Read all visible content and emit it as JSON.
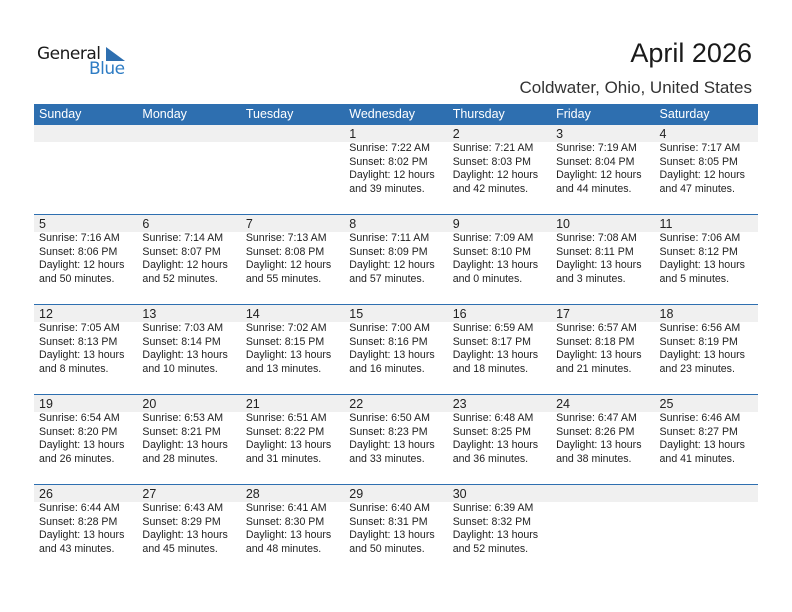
{
  "logo": {
    "general": "General",
    "blue": "Blue"
  },
  "title": "April 2026",
  "location": "Coldwater, Ohio, United States",
  "colors": {
    "header": "#2e6fb0",
    "band": "#f0f0f0"
  },
  "days": [
    "Sunday",
    "Monday",
    "Tuesday",
    "Wednesday",
    "Thursday",
    "Friday",
    "Saturday"
  ],
  "weeks": [
    [
      null,
      null,
      null,
      {
        "d": "1",
        "sr": "Sunrise: 7:22 AM",
        "ss": "Sunset: 8:02 PM",
        "dl": "Daylight: 12 hours",
        "dm": "and 39 minutes."
      },
      {
        "d": "2",
        "sr": "Sunrise: 7:21 AM",
        "ss": "Sunset: 8:03 PM",
        "dl": "Daylight: 12 hours",
        "dm": "and 42 minutes."
      },
      {
        "d": "3",
        "sr": "Sunrise: 7:19 AM",
        "ss": "Sunset: 8:04 PM",
        "dl": "Daylight: 12 hours",
        "dm": "and 44 minutes."
      },
      {
        "d": "4",
        "sr": "Sunrise: 7:17 AM",
        "ss": "Sunset: 8:05 PM",
        "dl": "Daylight: 12 hours",
        "dm": "and 47 minutes."
      }
    ],
    [
      {
        "d": "5",
        "sr": "Sunrise: 7:16 AM",
        "ss": "Sunset: 8:06 PM",
        "dl": "Daylight: 12 hours",
        "dm": "and 50 minutes."
      },
      {
        "d": "6",
        "sr": "Sunrise: 7:14 AM",
        "ss": "Sunset: 8:07 PM",
        "dl": "Daylight: 12 hours",
        "dm": "and 52 minutes."
      },
      {
        "d": "7",
        "sr": "Sunrise: 7:13 AM",
        "ss": "Sunset: 8:08 PM",
        "dl": "Daylight: 12 hours",
        "dm": "and 55 minutes."
      },
      {
        "d": "8",
        "sr": "Sunrise: 7:11 AM",
        "ss": "Sunset: 8:09 PM",
        "dl": "Daylight: 12 hours",
        "dm": "and 57 minutes."
      },
      {
        "d": "9",
        "sr": "Sunrise: 7:09 AM",
        "ss": "Sunset: 8:10 PM",
        "dl": "Daylight: 13 hours",
        "dm": "and 0 minutes."
      },
      {
        "d": "10",
        "sr": "Sunrise: 7:08 AM",
        "ss": "Sunset: 8:11 PM",
        "dl": "Daylight: 13 hours",
        "dm": "and 3 minutes."
      },
      {
        "d": "11",
        "sr": "Sunrise: 7:06 AM",
        "ss": "Sunset: 8:12 PM",
        "dl": "Daylight: 13 hours",
        "dm": "and 5 minutes."
      }
    ],
    [
      {
        "d": "12",
        "sr": "Sunrise: 7:05 AM",
        "ss": "Sunset: 8:13 PM",
        "dl": "Daylight: 13 hours",
        "dm": "and 8 minutes."
      },
      {
        "d": "13",
        "sr": "Sunrise: 7:03 AM",
        "ss": "Sunset: 8:14 PM",
        "dl": "Daylight: 13 hours",
        "dm": "and 10 minutes."
      },
      {
        "d": "14",
        "sr": "Sunrise: 7:02 AM",
        "ss": "Sunset: 8:15 PM",
        "dl": "Daylight: 13 hours",
        "dm": "and 13 minutes."
      },
      {
        "d": "15",
        "sr": "Sunrise: 7:00 AM",
        "ss": "Sunset: 8:16 PM",
        "dl": "Daylight: 13 hours",
        "dm": "and 16 minutes."
      },
      {
        "d": "16",
        "sr": "Sunrise: 6:59 AM",
        "ss": "Sunset: 8:17 PM",
        "dl": "Daylight: 13 hours",
        "dm": "and 18 minutes."
      },
      {
        "d": "17",
        "sr": "Sunrise: 6:57 AM",
        "ss": "Sunset: 8:18 PM",
        "dl": "Daylight: 13 hours",
        "dm": "and 21 minutes."
      },
      {
        "d": "18",
        "sr": "Sunrise: 6:56 AM",
        "ss": "Sunset: 8:19 PM",
        "dl": "Daylight: 13 hours",
        "dm": "and 23 minutes."
      }
    ],
    [
      {
        "d": "19",
        "sr": "Sunrise: 6:54 AM",
        "ss": "Sunset: 8:20 PM",
        "dl": "Daylight: 13 hours",
        "dm": "and 26 minutes."
      },
      {
        "d": "20",
        "sr": "Sunrise: 6:53 AM",
        "ss": "Sunset: 8:21 PM",
        "dl": "Daylight: 13 hours",
        "dm": "and 28 minutes."
      },
      {
        "d": "21",
        "sr": "Sunrise: 6:51 AM",
        "ss": "Sunset: 8:22 PM",
        "dl": "Daylight: 13 hours",
        "dm": "and 31 minutes."
      },
      {
        "d": "22",
        "sr": "Sunrise: 6:50 AM",
        "ss": "Sunset: 8:23 PM",
        "dl": "Daylight: 13 hours",
        "dm": "and 33 minutes."
      },
      {
        "d": "23",
        "sr": "Sunrise: 6:48 AM",
        "ss": "Sunset: 8:25 PM",
        "dl": "Daylight: 13 hours",
        "dm": "and 36 minutes."
      },
      {
        "d": "24",
        "sr": "Sunrise: 6:47 AM",
        "ss": "Sunset: 8:26 PM",
        "dl": "Daylight: 13 hours",
        "dm": "and 38 minutes."
      },
      {
        "d": "25",
        "sr": "Sunrise: 6:46 AM",
        "ss": "Sunset: 8:27 PM",
        "dl": "Daylight: 13 hours",
        "dm": "and 41 minutes."
      }
    ],
    [
      {
        "d": "26",
        "sr": "Sunrise: 6:44 AM",
        "ss": "Sunset: 8:28 PM",
        "dl": "Daylight: 13 hours",
        "dm": "and 43 minutes."
      },
      {
        "d": "27",
        "sr": "Sunrise: 6:43 AM",
        "ss": "Sunset: 8:29 PM",
        "dl": "Daylight: 13 hours",
        "dm": "and 45 minutes."
      },
      {
        "d": "28",
        "sr": "Sunrise: 6:41 AM",
        "ss": "Sunset: 8:30 PM",
        "dl": "Daylight: 13 hours",
        "dm": "and 48 minutes."
      },
      {
        "d": "29",
        "sr": "Sunrise: 6:40 AM",
        "ss": "Sunset: 8:31 PM",
        "dl": "Daylight: 13 hours",
        "dm": "and 50 minutes."
      },
      {
        "d": "30",
        "sr": "Sunrise: 6:39 AM",
        "ss": "Sunset: 8:32 PM",
        "dl": "Daylight: 13 hours",
        "dm": "and 52 minutes."
      },
      null,
      null
    ]
  ]
}
